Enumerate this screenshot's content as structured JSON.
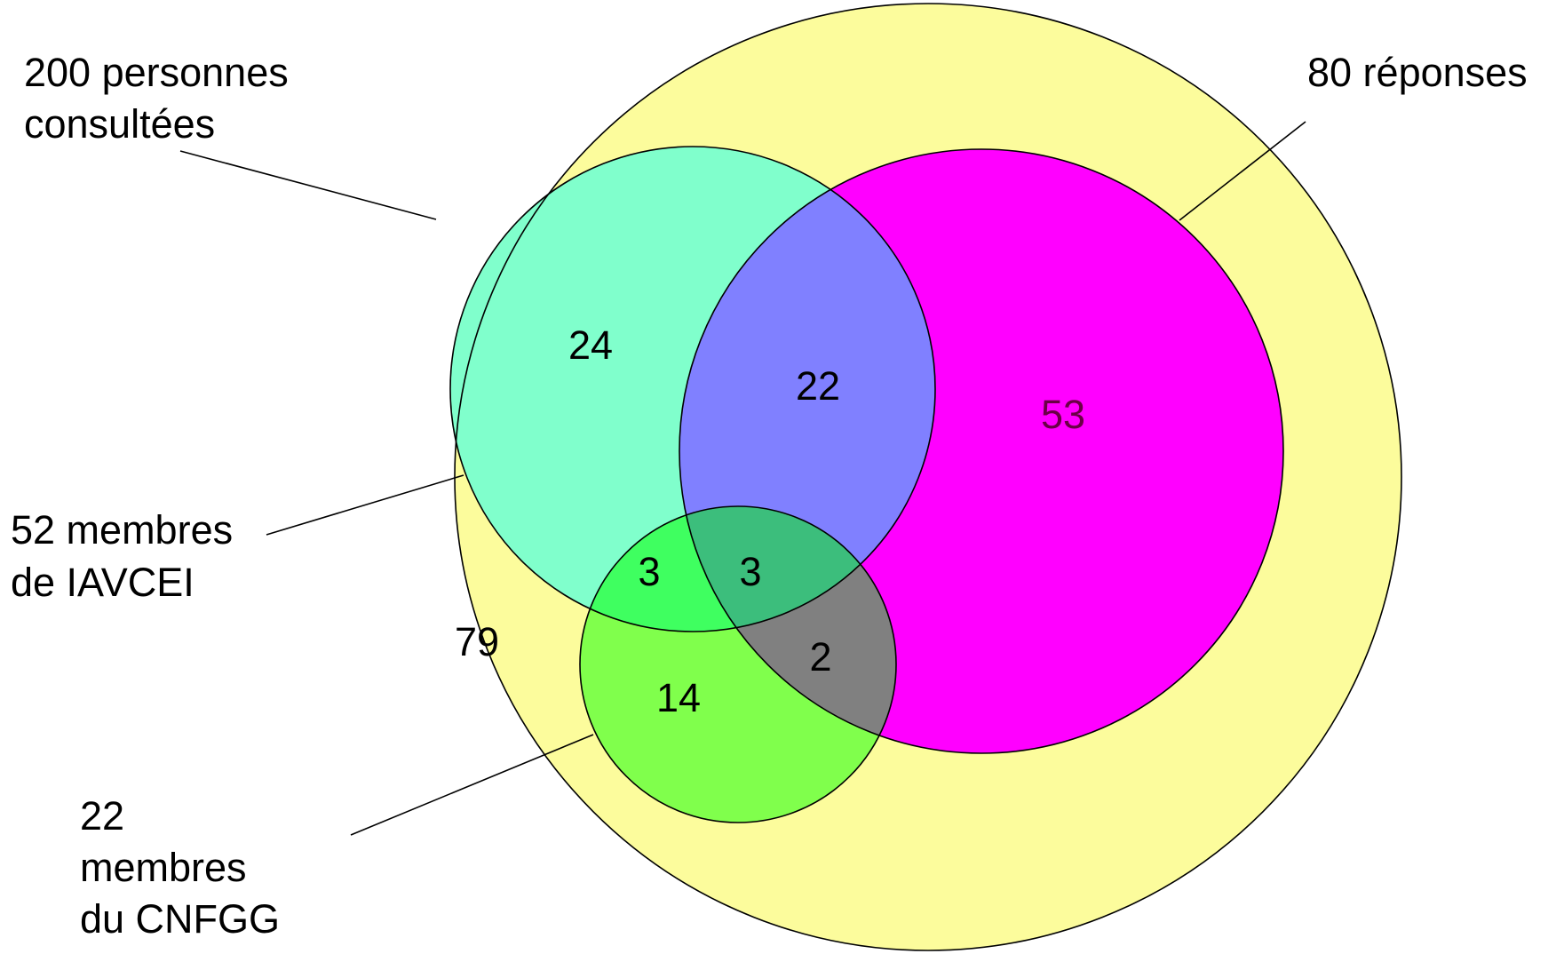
{
  "colors": {
    "total": "#fcfc9c",
    "responses": "#ff00ff",
    "iavcei": "#80ffcc",
    "cnfgg": "#80ff4c",
    "iavcei_responses": "#8080ff",
    "iavcei_cnfgg": "#3fff60",
    "all_three": "#3cbe7c",
    "cnfgg_responses": "#808080",
    "outline": "#000000"
  },
  "labels": {
    "total": [
      "200 personnes",
      "consultées"
    ],
    "responses": [
      "80 réponses"
    ],
    "iavcei": [
      "52 membres",
      "de IAVCEI"
    ],
    "cnfgg": [
      "22",
      "membres",
      "du CNFGG"
    ]
  },
  "regions": {
    "outside_only": "79",
    "iavcei_only": "24",
    "iavcei_responses": "22",
    "responses_only": "53",
    "iavcei_cnfgg": "3",
    "all_three": "3",
    "cnfgg_responses": "2",
    "cnfgg_only": "14"
  }
}
